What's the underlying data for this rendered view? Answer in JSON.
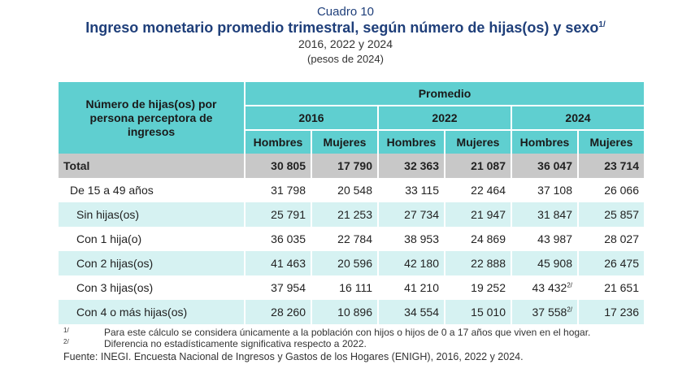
{
  "header": {
    "cuadro": "Cuadro 10",
    "title": "Ingreso monetario promedio trimestral, según número de hijas(os) y sexo",
    "title_note": "1/",
    "years": "2016, 2022 y 2024",
    "units": "(pesos de 2024)"
  },
  "table": {
    "stub_header": "Número de hijas(os) por persona perceptora de ingresos",
    "group_header": "Promedio",
    "years": [
      "2016",
      "2022",
      "2024"
    ],
    "sex_labels": [
      "Hombres",
      "Mujeres",
      "Hombres",
      "Mujeres",
      "Hombres",
      "Mujeres"
    ],
    "rows": [
      {
        "label": "Total",
        "values": [
          "30 805",
          "17 790",
          "32 363",
          "21 087",
          "36 047",
          "23 714"
        ],
        "notes": [
          "",
          "",
          "",
          "",
          "",
          ""
        ]
      },
      {
        "label": "De 15 a 49 años",
        "values": [
          "31 798",
          "20 548",
          "33 115",
          "22 464",
          "37 108",
          "26 066"
        ],
        "notes": [
          "",
          "",
          "",
          "",
          "",
          ""
        ]
      },
      {
        "label": "Sin hijas(os)",
        "values": [
          "25 791",
          "21 253",
          "27 734",
          "21 947",
          "31 847",
          "25 857"
        ],
        "notes": [
          "",
          "",
          "",
          "",
          "",
          ""
        ]
      },
      {
        "label": "Con 1 hija(o)",
        "values": [
          "36 035",
          "22 784",
          "38 953",
          "24 869",
          "43 987",
          "28 027"
        ],
        "notes": [
          "",
          "",
          "",
          "",
          "",
          ""
        ]
      },
      {
        "label": "Con 2 hijas(os)",
        "values": [
          "41 463",
          "20 596",
          "42 180",
          "22 888",
          "45 908",
          "26 475"
        ],
        "notes": [
          "",
          "",
          "",
          "",
          "",
          ""
        ]
      },
      {
        "label": "Con 3 hijas(os)",
        "values": [
          "37 954",
          "16 111",
          "41 210",
          "19 252",
          "43 432",
          "21 651"
        ],
        "notes": [
          "",
          "",
          "",
          "",
          "2/",
          ""
        ]
      },
      {
        "label": "Con 4 o más hijas(os)",
        "values": [
          "28 260",
          "10 896",
          "34 554",
          "15 010",
          "37 558",
          "17 236"
        ],
        "notes": [
          "",
          "",
          "",
          "",
          "2/",
          ""
        ]
      }
    ]
  },
  "notes": [
    {
      "mark": "1/",
      "text": "Para este cálculo se considera únicamente a la población con hijos o hijos de 0 a 17 años que viven en el hogar."
    },
    {
      "mark": "2/",
      "text": "Diferencia no estadísticamente significativa respecto a 2022."
    }
  ],
  "source": "Fuente: INEGI. Encuesta Nacional de Ingresos y Gastos de los Hogares (ENIGH), 2016, 2022 y 2024."
}
